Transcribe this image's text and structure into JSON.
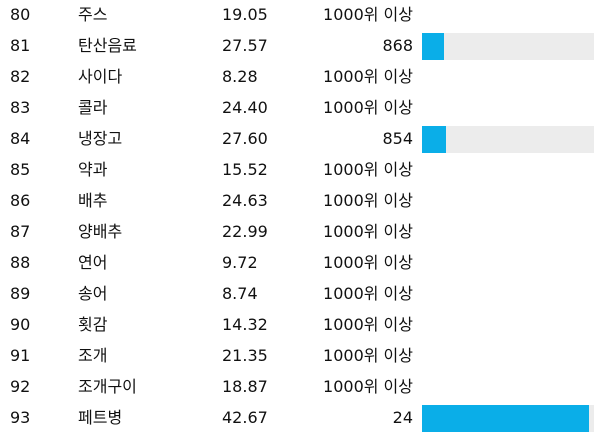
{
  "colors": {
    "bar_fill": "#0aaee8",
    "bar_track": "#ececec",
    "text": "#111111",
    "background": "#ffffff"
  },
  "rows": [
    {
      "num": "80",
      "name": "주스",
      "score": "19.05",
      "rank": "1000위 이상",
      "bar": null
    },
    {
      "num": "81",
      "name": "탄산음료",
      "score": "27.57",
      "rank": "868",
      "bar": 0.13
    },
    {
      "num": "82",
      "name": "사이다",
      "score": "8.28",
      "rank": "1000위 이상",
      "bar": null
    },
    {
      "num": "83",
      "name": "콜라",
      "score": "24.40",
      "rank": "1000위 이상",
      "bar": null
    },
    {
      "num": "84",
      "name": "냉장고",
      "score": "27.60",
      "rank": "854",
      "bar": 0.14
    },
    {
      "num": "85",
      "name": "약과",
      "score": "15.52",
      "rank": "1000위 이상",
      "bar": null
    },
    {
      "num": "86",
      "name": "배추",
      "score": "24.63",
      "rank": "1000위 이상",
      "bar": null
    },
    {
      "num": "87",
      "name": "양배추",
      "score": "22.99",
      "rank": "1000위 이상",
      "bar": null
    },
    {
      "num": "88",
      "name": "연어",
      "score": "9.72",
      "rank": "1000위 이상",
      "bar": null
    },
    {
      "num": "89",
      "name": "송어",
      "score": "8.74",
      "rank": "1000위 이상",
      "bar": null
    },
    {
      "num": "90",
      "name": "횟감",
      "score": "14.32",
      "rank": "1000위 이상",
      "bar": null
    },
    {
      "num": "91",
      "name": "조개",
      "score": "21.35",
      "rank": "1000위 이상",
      "bar": null
    },
    {
      "num": "92",
      "name": "조개구이",
      "score": "18.87",
      "rank": "1000위 이상",
      "bar": null
    },
    {
      "num": "93",
      "name": "페트병",
      "score": "42.67",
      "rank": "24",
      "bar": 0.97
    }
  ]
}
